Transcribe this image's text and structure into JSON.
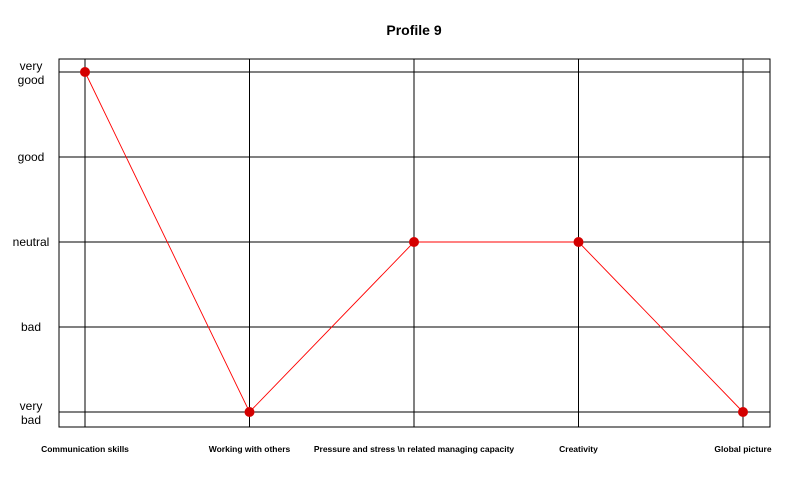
{
  "chart_data": {
    "type": "line",
    "title": "Profile 9",
    "categories": [
      "Communication skills",
      "Working with others",
      "Pressure and stress \\n related managing capacity",
      "Creativity",
      "Global picture"
    ],
    "y_levels": [
      [
        "very",
        "bad"
      ],
      [
        "bad"
      ],
      [
        "neutral"
      ],
      [
        "good"
      ],
      [
        "very",
        "good"
      ]
    ],
    "ylim": [
      1,
      5
    ],
    "grid": true,
    "series": [
      {
        "values": [
          5,
          1,
          3,
          3,
          1
        ],
        "color": "#ff0000",
        "marker_color": "#d40000"
      }
    ]
  }
}
